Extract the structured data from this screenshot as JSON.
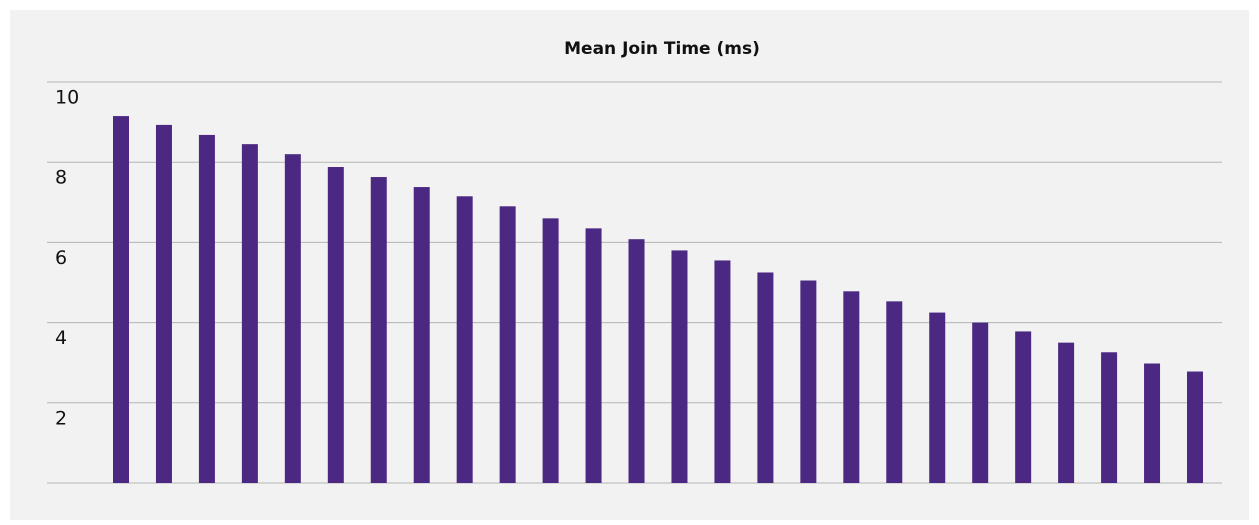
{
  "chart_data": {
    "type": "bar",
    "title": "Mean Join Time (ms)",
    "categories": [
      null,
      null,
      null,
      null,
      null,
      null,
      null,
      null,
      null,
      null,
      null,
      null,
      null,
      null,
      null,
      null,
      null,
      null,
      null,
      null,
      null,
      null,
      null,
      null,
      null,
      null
    ],
    "values": [
      9.15,
      8.93,
      8.68,
      8.45,
      8.2,
      7.88,
      7.63,
      7.38,
      7.15,
      6.9,
      6.6,
      6.35,
      6.08,
      5.8,
      5.55,
      5.25,
      5.05,
      4.78,
      4.53,
      4.25,
      4.0,
      3.78,
      3.5,
      3.26,
      2.98,
      2.78
    ],
    "color": "#4b2882",
    "ylim": [
      0,
      10
    ],
    "yticks": [
      2,
      4,
      6,
      8,
      10
    ],
    "grid": true
  }
}
